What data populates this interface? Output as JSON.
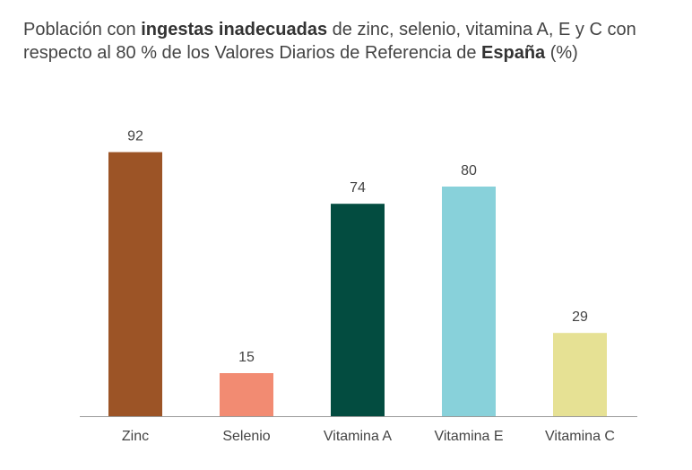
{
  "chart_data": {
    "type": "bar",
    "title_parts": [
      {
        "text": "Población con ",
        "bold": false
      },
      {
        "text": "ingestas inadecuadas",
        "bold": true
      },
      {
        "text": " de zinc, selenio, vitamina A, E y C con respecto al 80 % de los Valores Diarios de Referencia de ",
        "bold": false
      },
      {
        "text": "España",
        "bold": true
      },
      {
        "text": " (%)",
        "bold": false
      }
    ],
    "categories": [
      "Zinc",
      "Selenio",
      "Vitamina A",
      "Vitamina E",
      "Vitamina C"
    ],
    "values": [
      92,
      15,
      74,
      80,
      29
    ],
    "colors": [
      "#9c5426",
      "#f28b72",
      "#034c40",
      "#88d1da",
      "#e6e194"
    ],
    "axis_color": "#9a9a9a",
    "ylim": [
      0,
      100
    ],
    "grid": false,
    "legend": "none"
  }
}
